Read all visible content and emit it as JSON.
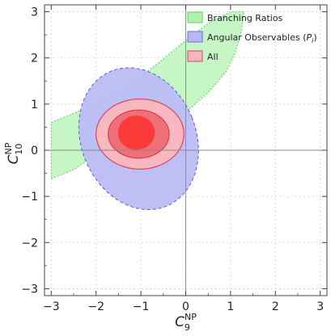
{
  "chart_data": {
    "type": "contour",
    "xlim": [
      -3.15,
      3.15
    ],
    "ylim": [
      -3.15,
      3.15
    ],
    "x_ticks": [
      -3,
      -2,
      -1,
      0,
      1,
      2,
      3
    ],
    "y_ticks": [
      -3,
      -2,
      -1,
      0,
      1,
      2,
      3
    ],
    "x_tick_labels": [
      "−3",
      "−2",
      "−1",
      "0",
      "1",
      "2",
      "3"
    ],
    "y_tick_labels": [
      "−3",
      "−2",
      "−1",
      "0",
      "1",
      "2",
      "3"
    ],
    "xlabel": {
      "base": "C",
      "sup": "NP",
      "sub": "9"
    },
    "ylabel": {
      "base": "C",
      "sup": "NP",
      "sub": "10"
    },
    "grid": true,
    "legend_position": "top-right",
    "legend": [
      {
        "label": "Branching Ratios",
        "color": "#aef2ae",
        "edge": "#5fcf5f"
      },
      {
        "label": "Angular Observables (",
        "label_italic": "P",
        "label_sub": "i",
        "label_end": ")",
        "color": "#b7b7f5",
        "edge": "#6b6bdc"
      },
      {
        "label": "All",
        "color": "#f5b7bd",
        "edge": "#e0435a"
      }
    ],
    "series": [
      {
        "name": "Branching Ratios",
        "fill": "#c6f5c6",
        "edge": "#5fcf5f",
        "upper": [
          [
            -3,
            0.6
          ],
          [
            -2.5,
            0.8
          ],
          [
            -2,
            1.0
          ],
          [
            -1.5,
            1.28
          ],
          [
            -1,
            1.6
          ],
          [
            -0.5,
            1.98
          ],
          [
            0,
            2.38
          ],
          [
            0.5,
            2.75
          ],
          [
            1.0,
            3.0
          ],
          [
            1.3,
            3.0
          ]
        ],
        "lower": [
          [
            1.3,
            3.0
          ],
          [
            1.25,
            2.6
          ],
          [
            1.1,
            2.1
          ],
          [
            0.9,
            1.7
          ],
          [
            0.5,
            1.25
          ],
          [
            0,
            0.82
          ],
          [
            -0.5,
            0.52
          ],
          [
            -1,
            0.28
          ],
          [
            -1.5,
            0.1
          ],
          [
            -2,
            -0.1
          ],
          [
            -2.5,
            -0.42
          ],
          [
            -3,
            -0.62
          ]
        ]
      },
      {
        "name": "Angular Observables",
        "fill": "#bcbcf5",
        "edge": "#5c5cdc",
        "ellipse": {
          "cx": -1.05,
          "cy": 0.25,
          "rx": 1.28,
          "ry": 1.58,
          "angle": -22
        }
      },
      {
        "name": "All",
        "levels": [
          {
            "fill": "#f7b8bf",
            "edge": "#e0435a",
            "cx": -1.02,
            "cy": 0.35,
            "rx": 0.98,
            "ry": 0.76
          },
          {
            "fill": "#ef7079",
            "edge": "#d8404c",
            "cx": -1.05,
            "cy": 0.35,
            "rx": 0.68,
            "ry": 0.52
          },
          {
            "fill": "#fb3a3a",
            "edge": "#fb3a3a",
            "cx": -1.1,
            "cy": 0.38,
            "rx": 0.4,
            "ry": 0.36
          }
        ]
      }
    ]
  }
}
